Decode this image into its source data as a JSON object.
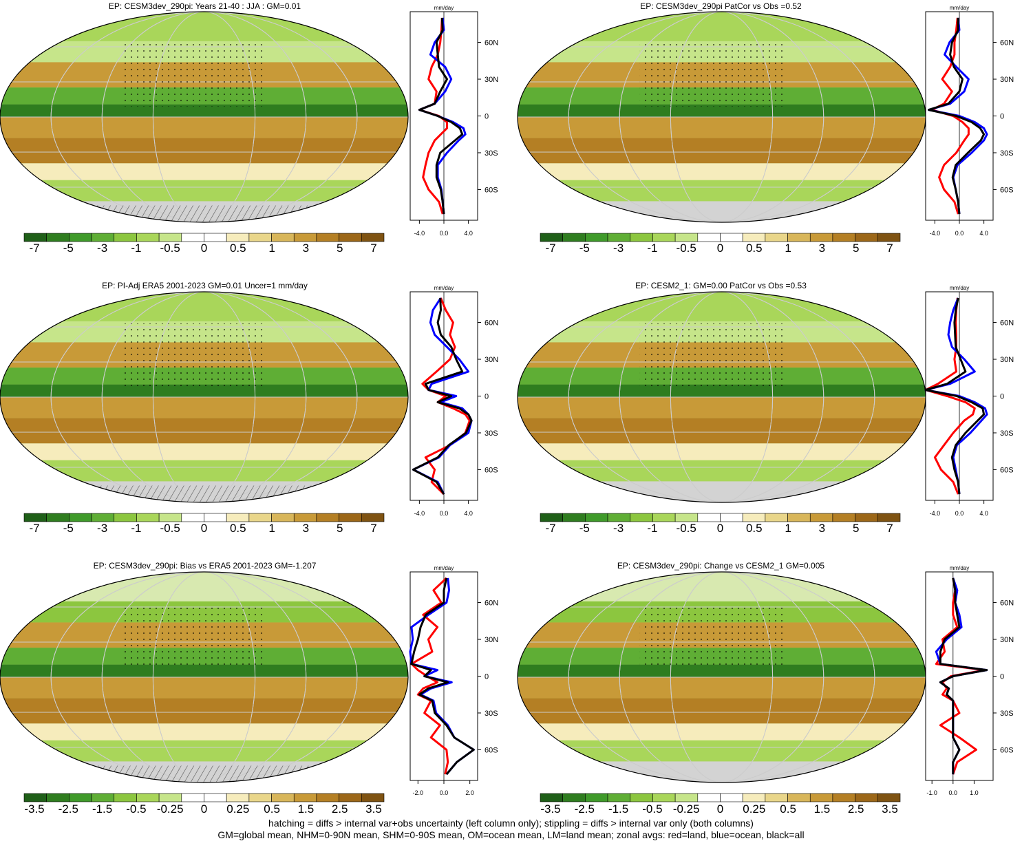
{
  "colors": {
    "diverging_scale": [
      "#1f5f18",
      "#2f7d1f",
      "#3f9a2a",
      "#5fae35",
      "#8cc63f",
      "#a9d65a",
      "#c6e58a",
      "#ffffff",
      "#ffffff",
      "#f6ecbc",
      "#e9d68a",
      "#d8b65a",
      "#c89a38",
      "#b47f24",
      "#9c6718",
      "#7f5312"
    ],
    "land_series": "#ff0000",
    "ocean_series": "#0000ff",
    "all_series": "#000000",
    "missing": "#d3d3d3"
  },
  "footer": {
    "line1": "hatching = diffs > internal var+obs uncertainty (left column only); stippling = diffs > internal var only (both columns)",
    "line2": "GM=global mean, NHM=0-90N mean, SHM=0-90S mean, OM=ocean mean, LM=land mean; zonal avgs: red=land, blue=ocean, black=all"
  },
  "chart_data": [
    {
      "type": "heatmap",
      "title": "EP: CESM3dev_290pi: Years 21-40 : JJA : GM=0.01",
      "colorbar_labels": [
        "-7",
        "-5",
        "-3",
        "-1",
        "-0.5",
        "0",
        "0.5",
        "1",
        "3",
        "5",
        "7"
      ],
      "colorbar_levels": [
        -8,
        -7,
        -6,
        -5,
        -4,
        -3,
        -2,
        -1,
        -0.5,
        0,
        0.5,
        1,
        2,
        3,
        4,
        5,
        6,
        7,
        8
      ],
      "zonal": {
        "unit": "mm/day",
        "xlim": [
          -5.5,
          5.5
        ],
        "xticks": [
          "-4.0",
          "0.0",
          "4.0"
        ],
        "yticks": [
          "60N",
          "30N",
          "0",
          "30S",
          "60S"
        ],
        "ylim": [
          -85,
          85
        ],
        "lat": [
          80,
          70,
          60,
          50,
          40,
          30,
          20,
          10,
          5,
          0,
          -5,
          -10,
          -15,
          -20,
          -30,
          -40,
          -50,
          -60,
          -70,
          -80
        ],
        "land": [
          -0.3,
          -0.4,
          -0.6,
          -1.0,
          -2.0,
          -2.5,
          -1.2,
          -1.5,
          -4.0,
          -0.8,
          0.5,
          0.5,
          -0.5,
          -1.5,
          -2.5,
          -3.0,
          -3.4,
          -2.5,
          -0.8,
          -0.2
        ],
        "ocean": [
          -0.2,
          0.0,
          -1.5,
          -2.2,
          0.2,
          1.2,
          0.2,
          -1.5,
          -4.0,
          -1.0,
          1.5,
          3.2,
          3.5,
          2.4,
          0.5,
          -1.0,
          -1.0,
          -0.4,
          -0.2,
          0.0
        ],
        "all": [
          -0.3,
          -0.2,
          -1.2,
          -1.0,
          -0.8,
          0.5,
          -0.6,
          -1.5,
          -4.0,
          -1.0,
          1.2,
          2.6,
          3.0,
          1.8,
          -0.6,
          -1.2,
          -1.2,
          -0.5,
          -0.2,
          0.0
        ]
      }
    },
    {
      "type": "heatmap",
      "title": "EP: CESM3dev_290pi PatCor vs Obs =0.52",
      "colorbar_labels": [
        "-7",
        "-5",
        "-3",
        "-1",
        "-0.5",
        "0",
        "0.5",
        "1",
        "3",
        "5",
        "7"
      ],
      "colorbar_levels": [
        -8,
        -7,
        -6,
        -5,
        -4,
        -3,
        -2,
        -1,
        -0.5,
        0,
        0.5,
        1,
        2,
        3,
        4,
        5,
        6,
        7,
        8
      ],
      "zonal": {
        "unit": "mm/day",
        "xlim": [
          -5.5,
          5.5
        ],
        "xticks": [
          "-4.0",
          "0.0",
          "4.0"
        ],
        "yticks": [
          "60N",
          "30N",
          "0",
          "30S",
          "60S"
        ],
        "ylim": [
          -85,
          85
        ],
        "lat": [
          80,
          70,
          60,
          50,
          40,
          30,
          20,
          10,
          5,
          0,
          -5,
          -10,
          -15,
          -20,
          -30,
          -40,
          -50,
          -60,
          -70,
          -80
        ],
        "land": [
          -0.3,
          -0.5,
          -0.8,
          -0.8,
          -1.5,
          -2.8,
          -1.2,
          -2.5,
          -4.5,
          -1.0,
          0.5,
          1.5,
          1.5,
          0.8,
          -0.5,
          -2.5,
          -3.3,
          -2.5,
          -0.8,
          -0.2
        ],
        "ocean": [
          -0.2,
          0.0,
          -1.6,
          -2.4,
          -0.5,
          1.5,
          0.8,
          -1.5,
          -5.0,
          0.0,
          2.5,
          4.0,
          4.5,
          4.0,
          2.0,
          -0.3,
          -1.0,
          -0.6,
          -0.2,
          0.0
        ],
        "all": [
          -0.2,
          -0.2,
          -1.2,
          -1.5,
          -0.9,
          0.5,
          0.0,
          -1.8,
          -5.0,
          -0.5,
          2.0,
          3.4,
          4.0,
          3.5,
          1.4,
          -0.6,
          -1.1,
          -0.6,
          -0.2,
          0.0
        ]
      }
    },
    {
      "type": "heatmap",
      "title": "EP: PI-Adj ERA5 2001-2023 GM=0.01 Uncer=1 mm/day",
      "colorbar_labels": [
        "-7",
        "-5",
        "-3",
        "-1",
        "-0.5",
        "0",
        "0.5",
        "1",
        "3",
        "5",
        "7"
      ],
      "colorbar_levels": [
        -8,
        -7,
        -6,
        -5,
        -4,
        -3,
        -2,
        -1,
        -0.5,
        0,
        0.5,
        1,
        2,
        3,
        4,
        5,
        6,
        7,
        8
      ],
      "zonal": {
        "unit": "mm/day",
        "xlim": [
          -5.5,
          5.5
        ],
        "xticks": [
          "-4.0",
          "0.0",
          "4.0"
        ],
        "yticks": [
          "60N",
          "30N",
          "0",
          "30S",
          "60S"
        ],
        "ylim": [
          -85,
          85
        ],
        "lat": [
          80,
          70,
          60,
          50,
          40,
          30,
          20,
          10,
          5,
          0,
          -5,
          -10,
          -15,
          -20,
          -30,
          -40,
          -50,
          -60,
          -70,
          -80
        ],
        "land": [
          -0.5,
          0.3,
          1.5,
          1.0,
          1.8,
          1.0,
          -1.2,
          -3.5,
          -2.5,
          0.3,
          -1.0,
          1.5,
          3.5,
          4.2,
          3.5,
          1.0,
          -3.0,
          -1.5,
          -2.0,
          0.0
        ],
        "ocean": [
          -0.5,
          -1.8,
          -2.2,
          -1.5,
          0.5,
          2.5,
          4.0,
          -2.0,
          -2.5,
          2.0,
          -0.5,
          3.0,
          4.0,
          4.5,
          4.0,
          1.0,
          -0.8,
          -5.0,
          -1.0,
          0.0
        ],
        "all": [
          -0.6,
          -0.5,
          -1.0,
          -0.5,
          1.2,
          2.0,
          3.0,
          -3.0,
          -2.5,
          1.2,
          -1.0,
          2.5,
          4.0,
          4.5,
          3.6,
          0.8,
          -1.0,
          -5.0,
          -1.2,
          0.0
        ]
      }
    },
    {
      "type": "heatmap",
      "title": "EP: CESM2_1: GM=0.00 PatCor vs Obs =0.53",
      "colorbar_labels": [
        "-7",
        "-5",
        "-3",
        "-1",
        "-0.5",
        "0",
        "0.5",
        "1",
        "3",
        "5",
        "7"
      ],
      "colorbar_levels": [
        -8,
        -7,
        -6,
        -5,
        -4,
        -3,
        -2,
        -1,
        -0.5,
        0,
        0.5,
        1,
        2,
        3,
        4,
        5,
        6,
        7,
        8
      ],
      "zonal": {
        "unit": "mm/day",
        "xlim": [
          -5.5,
          5.5
        ],
        "xticks": [
          "-4.0",
          "0.0",
          "4.0"
        ],
        "yticks": [
          "60N",
          "30N",
          "0",
          "30S",
          "60S"
        ],
        "ylim": [
          -85,
          85
        ],
        "lat": [
          80,
          70,
          60,
          50,
          40,
          30,
          20,
          10,
          5,
          0,
          -5,
          -10,
          -15,
          -20,
          -30,
          -40,
          -50,
          -60,
          -70,
          -80
        ],
        "land": [
          -0.3,
          -0.5,
          -0.6,
          -0.5,
          -0.5,
          -0.8,
          -0.5,
          -3.5,
          -5.5,
          -2.0,
          1.0,
          2.5,
          2.2,
          0.8,
          -1.0,
          -2.5,
          -4.0,
          -3.0,
          -1.0,
          -0.2
        ],
        "ocean": [
          -0.2,
          -1.0,
          -1.5,
          -1.8,
          -1.2,
          0.8,
          2.5,
          -1.5,
          -5.5,
          0.0,
          2.5,
          4.2,
          4.5,
          3.6,
          1.8,
          -0.4,
          -1.0,
          -0.6,
          -0.2,
          0.0
        ],
        "all": [
          -0.2,
          -0.6,
          -0.8,
          -0.7,
          -0.6,
          0.2,
          1.0,
          -2.0,
          -5.5,
          -0.4,
          2.0,
          3.8,
          4.0,
          3.0,
          1.0,
          -0.6,
          -1.2,
          -0.8,
          -0.2,
          0.0
        ]
      }
    },
    {
      "type": "heatmap",
      "title": "EP: CESM3dev_290pi: Bias vs ERA5 2001-2023 GM=-1.207",
      "colorbar_labels": [
        "-3.5",
        "-2.5",
        "-1.5",
        "-0.5",
        "-0.25",
        "0",
        "0.25",
        "0.5",
        "1.5",
        "2.5",
        "3.5"
      ],
      "colorbar_levels": [
        -4,
        -3.5,
        -3,
        -2.5,
        -2,
        -1.5,
        -1,
        -0.5,
        -0.25,
        0,
        0.25,
        0.5,
        1,
        1.5,
        2,
        2.5,
        3,
        3.5,
        4
      ],
      "zonal": {
        "unit": "mm/day",
        "xlim": [
          -2.6,
          2.6
        ],
        "xticks": [
          "-2.0",
          "0.0",
          "2.0"
        ],
        "yticks": [
          "60N",
          "30N",
          "0",
          "30S",
          "60S"
        ],
        "ylim": [
          -85,
          85
        ],
        "lat": [
          80,
          70,
          60,
          50,
          40,
          30,
          20,
          10,
          5,
          0,
          -5,
          -10,
          -15,
          -20,
          -30,
          -40,
          -50,
          -60,
          -70,
          -80
        ],
        "land": [
          0.2,
          -0.8,
          -0.2,
          -1.6,
          -0.5,
          -1.2,
          -0.9,
          -2.5,
          -2.0,
          -1.3,
          -0.5,
          -1.6,
          -2.0,
          -1.0,
          -1.5,
          -0.3,
          -1.0,
          0.2,
          0.3,
          0.1
        ],
        "ocean": [
          0.3,
          0.4,
          0.2,
          -1.2,
          -2.5,
          -2.4,
          -2.6,
          -2.5,
          -0.5,
          -1.5,
          0.6,
          -1.0,
          -1.8,
          -0.8,
          -0.6,
          0.3,
          0.8,
          2.3,
          1.0,
          0.2
        ],
        "all": [
          0.2,
          0.0,
          0.0,
          -1.4,
          -1.8,
          -2.0,
          -2.3,
          -2.5,
          -1.0,
          -1.5,
          0.3,
          -1.2,
          -1.9,
          -0.9,
          -0.7,
          0.2,
          0.8,
          2.3,
          1.0,
          0.2
        ]
      }
    },
    {
      "type": "heatmap",
      "title": "EP: CESM3dev_290pi: Change vs CESM2_1 GM=0.005",
      "colorbar_labels": [
        "-3.5",
        "-2.5",
        "-1.5",
        "-0.5",
        "-0.25",
        "0",
        "0.25",
        "0.5",
        "1.5",
        "2.5",
        "3.5"
      ],
      "colorbar_levels": [
        -4,
        -3.5,
        -3,
        -2.5,
        -2,
        -1.5,
        -1,
        -0.5,
        -0.25,
        0,
        0.25,
        0.5,
        1,
        1.5,
        2,
        2.5,
        3,
        3.5,
        4
      ],
      "zonal": {
        "unit": "mm/day",
        "xlim": [
          -1.3,
          1.9
        ],
        "xticks": [
          "-1.0",
          "0.0",
          "1.0"
        ],
        "yticks": [
          "60N",
          "30N",
          "0",
          "30S",
          "60S"
        ],
        "ylim": [
          -85,
          85
        ],
        "lat": [
          80,
          70,
          60,
          50,
          40,
          30,
          20,
          10,
          5,
          0,
          -5,
          -10,
          -15,
          -20,
          -30,
          -40,
          -50,
          -60,
          -70,
          -80
        ],
        "land": [
          0.0,
          0.1,
          0.0,
          0.0,
          0.2,
          -0.5,
          -0.4,
          -0.8,
          1.5,
          -0.1,
          -0.5,
          -0.3,
          -0.5,
          0.0,
          0.3,
          -0.6,
          0.3,
          1.1,
          0.2,
          0.0
        ],
        "ocean": [
          0.0,
          0.2,
          0.1,
          0.3,
          0.4,
          -0.3,
          -0.8,
          -0.6,
          1.6,
          0.0,
          -0.6,
          -0.2,
          -0.3,
          0.0,
          0.0,
          0.0,
          0.0,
          0.3,
          0.0,
          0.0
        ],
        "all": [
          0.0,
          0.1,
          0.1,
          0.2,
          0.3,
          -0.4,
          -0.6,
          -0.6,
          1.6,
          0.0,
          -0.6,
          -0.2,
          -0.3,
          0.0,
          0.0,
          0.0,
          0.0,
          0.3,
          0.0,
          0.0
        ]
      }
    }
  ]
}
